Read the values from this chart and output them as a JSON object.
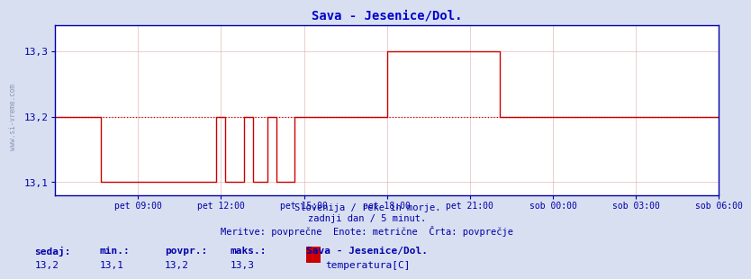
{
  "title": "Sava - Jesenice/Dol.",
  "title_color": "#0000cc",
  "bg_color": "#d8dff0",
  "plot_bg_color": "#ffffff",
  "line_color": "#cc0000",
  "avg_line_color": "#cc0000",
  "axis_color": "#0000aa",
  "text_color": "#0000aa",
  "grid_color": "#ddaaaa",
  "ylim_min": 13.08,
  "ylim_max": 13.34,
  "yticks": [
    13.1,
    13.2,
    13.3
  ],
  "subtitle1": "Slovenija / reke in morje.",
  "subtitle2": "zadnji dan / 5 minut.",
  "subtitle3": "Meritve: povprečne  Enote: metrične  Črta: povprečje",
  "footer_labels": [
    "sedaj:",
    "min.:",
    "povpr.:",
    "maks.:"
  ],
  "footer_values": [
    "13,2",
    "13,1",
    "13,2",
    "13,3"
  ],
  "footer_station": "Sava - Jesenice/Dol.",
  "footer_var": "temperatura[C]",
  "legend_color": "#cc0000",
  "xtick_labels": [
    "pet 09:00",
    "pet 12:00",
    "pet 15:00",
    "pet 18:00",
    "pet 21:00",
    "sob 00:00",
    "sob 03:00",
    "sob 06:00"
  ],
  "avg_value": 13.2,
  "watermark": "www.si-vreme.com",
  "n_points": 289
}
